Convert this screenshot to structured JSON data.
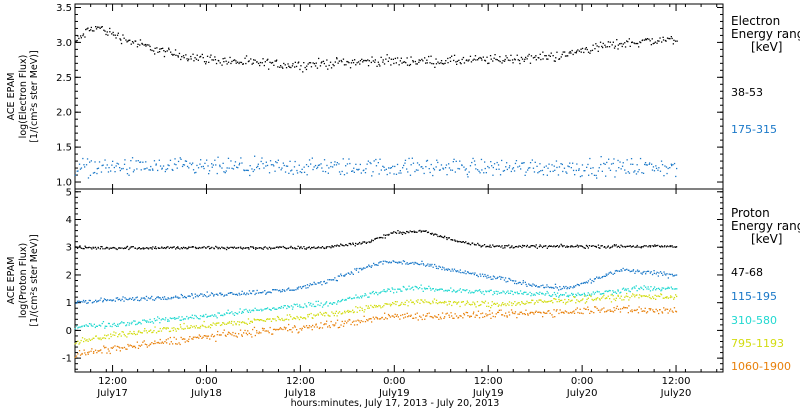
{
  "xaxis": {
    "title": "hours:minutes, July 17, 2013 - July 20, 2013",
    "range": [
      0.3,
      3.75
    ],
    "ticks": [
      {
        "x": 0.5,
        "time": "12:00",
        "date": "July17"
      },
      {
        "x": 1.0,
        "time": "0:00",
        "date": "July18"
      },
      {
        "x": 1.5,
        "time": "12:00",
        "date": "July18"
      },
      {
        "x": 2.0,
        "time": "0:00",
        "date": "July19"
      },
      {
        "x": 2.5,
        "time": "12:00",
        "date": "July19"
      },
      {
        "x": 3.0,
        "time": "0:00",
        "date": "July20"
      },
      {
        "x": 3.5,
        "time": "12:00",
        "date": "July20"
      }
    ]
  },
  "chart_data": [
    {
      "type": "scatter",
      "panel": "electron",
      "ylabel_lines": [
        "ACE EPAM",
        "log(Electron Flux)",
        "[1/(cm²s ster MeV)]"
      ],
      "ylim": [
        0.9,
        3.55
      ],
      "yticks": [
        "1.0",
        "1.5",
        "2.0",
        "2.5",
        "3.0",
        "3.5"
      ],
      "legend_title": [
        "Electron",
        "Energy range"
      ],
      "legend_unit": "[keV]",
      "series": [
        {
          "name": "38-53",
          "color": "#000000",
          "x": [
            0.3,
            0.38,
            0.42,
            0.48,
            0.55,
            0.65,
            0.8,
            1.0,
            1.2,
            1.35,
            1.5,
            1.7,
            1.9,
            2.1,
            2.3,
            2.5,
            2.7,
            2.9,
            3.0,
            3.1,
            3.3,
            3.5
          ],
          "y": [
            3.02,
            3.2,
            3.22,
            3.15,
            3.07,
            2.97,
            2.85,
            2.77,
            2.72,
            2.7,
            2.68,
            2.72,
            2.74,
            2.74,
            2.74,
            2.76,
            2.78,
            2.82,
            2.9,
            2.95,
            3.02,
            3.05
          ],
          "spread": 0.05
        },
        {
          "name": "175-315",
          "color": "#1a78c8",
          "x": [
            0.3,
            3.5
          ],
          "y": [
            1.22,
            1.22
          ],
          "spread": 0.09
        }
      ]
    },
    {
      "type": "scatter",
      "panel": "proton",
      "ylabel_lines": [
        "ACE EPAM",
        "log(Proton Flux)",
        "[1/(cm²s ster MeV)]"
      ],
      "ylim": [
        -1.5,
        5.1
      ],
      "yticks": [
        "-1",
        "0",
        "1",
        "2",
        "3",
        "4",
        "5"
      ],
      "legend_title": [
        "Proton",
        "Energy range"
      ],
      "legend_unit": "[keV]",
      "series": [
        {
          "name": "47-68",
          "color": "#000000",
          "x": [
            0.3,
            1.0,
            1.6,
            1.85,
            2.0,
            2.15,
            2.3,
            2.5,
            2.7,
            2.95,
            3.2,
            3.5
          ],
          "y": [
            3.0,
            3.0,
            3.0,
            3.2,
            3.55,
            3.6,
            3.3,
            3.05,
            3.05,
            3.05,
            3.05,
            3.05
          ],
          "spread": 0.04
        },
        {
          "name": "115-195",
          "color": "#1a78c8",
          "x": [
            0.3,
            0.6,
            1.0,
            1.4,
            1.6,
            1.8,
            1.95,
            2.1,
            2.3,
            2.5,
            2.75,
            2.9,
            3.0,
            3.2,
            3.5
          ],
          "y": [
            1.05,
            1.15,
            1.3,
            1.45,
            1.7,
            2.2,
            2.5,
            2.45,
            2.2,
            1.95,
            1.65,
            1.55,
            1.7,
            2.2,
            2.0
          ],
          "spread": 0.06
        },
        {
          "name": "310-580",
          "color": "#20d8d0",
          "x": [
            0.3,
            0.6,
            1.0,
            1.4,
            1.7,
            1.95,
            2.1,
            2.5,
            2.8,
            3.0,
            3.3,
            3.5
          ],
          "y": [
            0.15,
            0.3,
            0.55,
            0.85,
            1.05,
            1.45,
            1.55,
            1.4,
            1.35,
            1.3,
            1.55,
            1.5
          ],
          "spread": 0.07
        },
        {
          "name": "795-1193",
          "color": "#d2dc10",
          "x": [
            0.3,
            0.6,
            1.0,
            1.4,
            1.7,
            2.0,
            2.2,
            2.5,
            2.8,
            3.0,
            3.3,
            3.5
          ],
          "y": [
            -0.4,
            -0.05,
            0.2,
            0.45,
            0.65,
            1.0,
            1.05,
            0.95,
            1.05,
            1.15,
            1.25,
            1.25
          ],
          "spread": 0.08
        },
        {
          "name": "1060-1900",
          "color": "#e8800a",
          "x": [
            0.3,
            0.6,
            1.0,
            1.4,
            1.7,
            2.0,
            2.3,
            2.6,
            2.9,
            3.1,
            3.3,
            3.5
          ],
          "y": [
            -0.85,
            -0.55,
            -0.2,
            0.05,
            0.25,
            0.55,
            0.55,
            0.6,
            0.7,
            0.8,
            0.75,
            0.75
          ],
          "spread": 0.1
        }
      ]
    }
  ]
}
